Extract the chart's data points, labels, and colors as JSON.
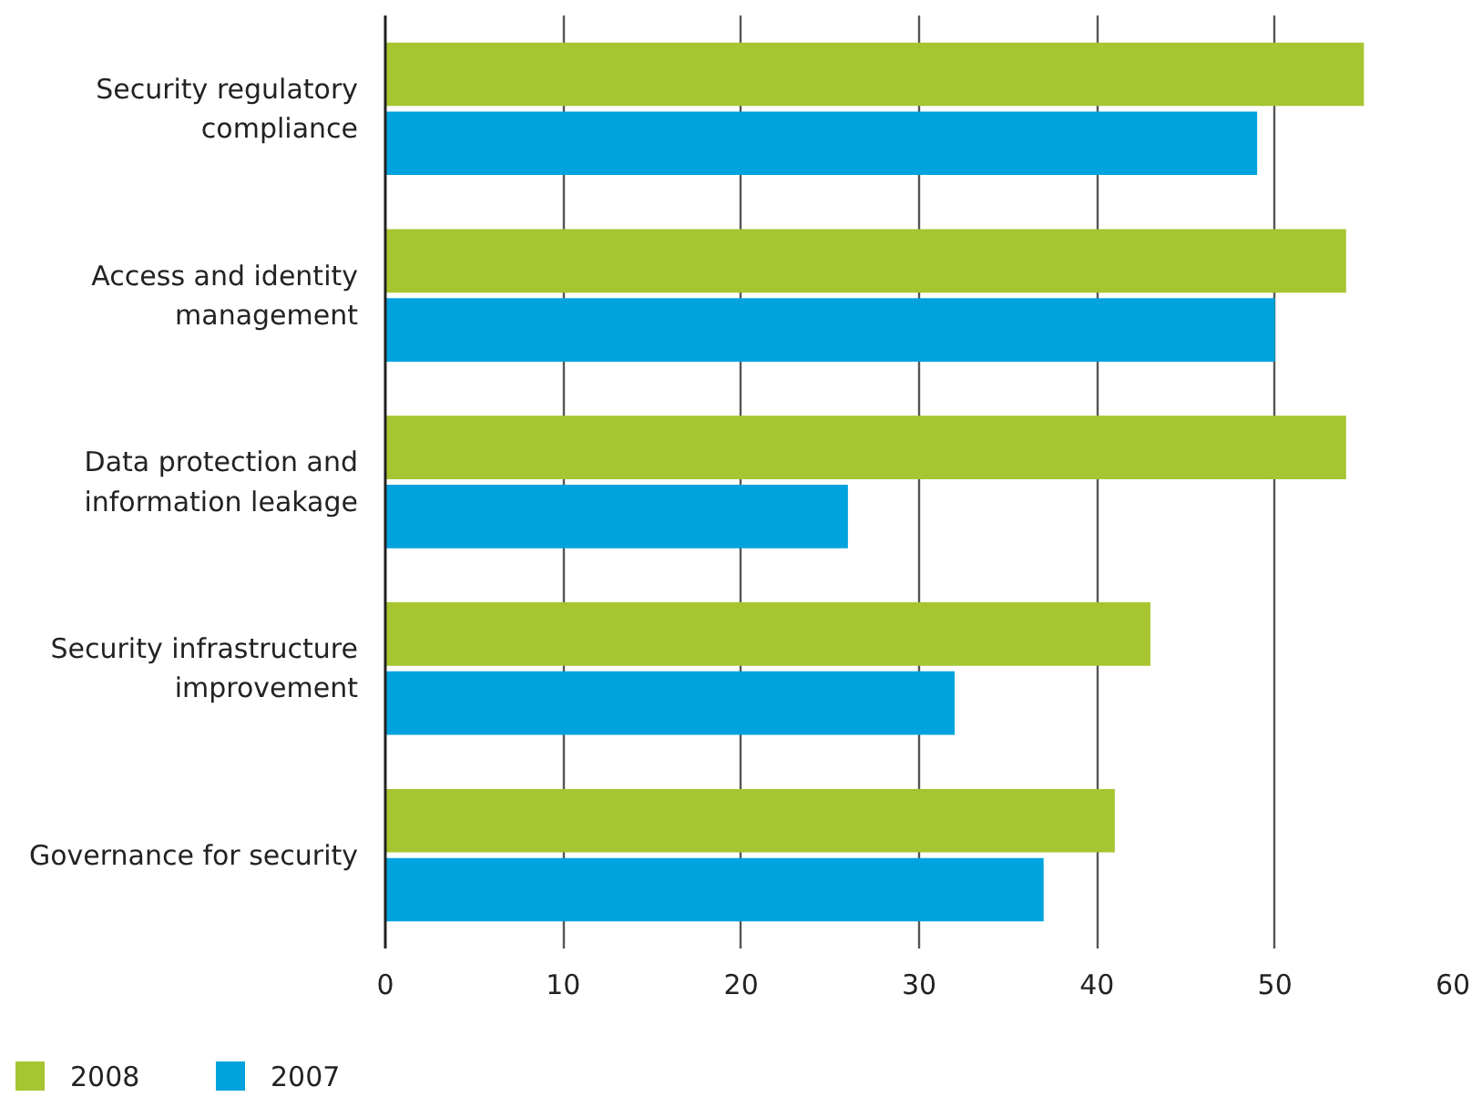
{
  "chart_data": {
    "type": "bar",
    "orientation": "horizontal",
    "categories": [
      "Security regulatory compliance",
      "Access and identity management",
      "Data protection and information leakage",
      "Security infrastructure improvement",
      "Governance for security"
    ],
    "series": [
      {
        "name": "2008",
        "color": "#a6c530",
        "values": [
          55,
          54,
          54,
          43,
          41
        ]
      },
      {
        "name": "2007",
        "color": "#00a3dd",
        "values": [
          49,
          50,
          26,
          32,
          37
        ]
      }
    ],
    "xlim": [
      0,
      60
    ],
    "xticks": [
      0,
      10,
      20,
      30,
      40,
      50,
      60
    ],
    "grid": "x",
    "legend": "bottom left"
  }
}
